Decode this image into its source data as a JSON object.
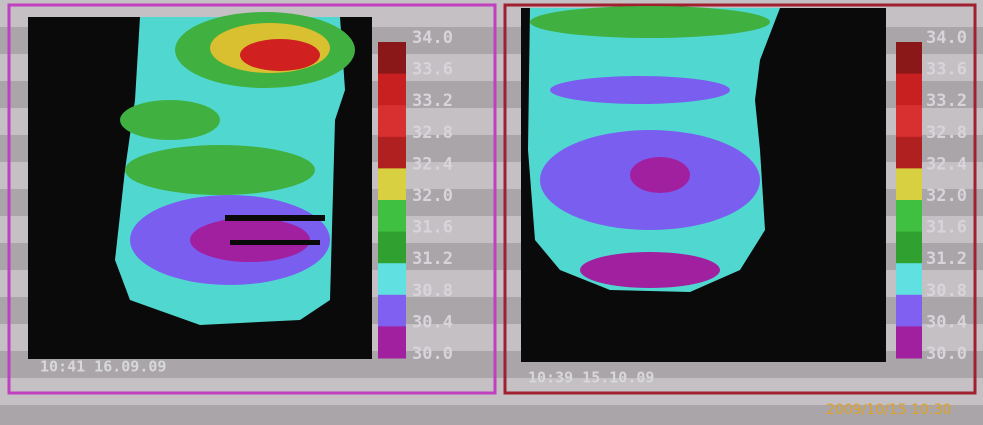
{
  "panels": [
    {
      "scale": [
        "34.0",
        "33.6",
        "33.2",
        "32.8",
        "32.4",
        "32.0",
        "31.6",
        "31.2",
        "30.8",
        "30.4",
        "30.0"
      ],
      "timestamp": "10:41 16.09.09"
    },
    {
      "scale": [
        "34.0",
        "33.6",
        "33.2",
        "32.8",
        "32.4",
        "32.0",
        "31.6",
        "31.2",
        "30.8",
        "30.4",
        "30.0"
      ],
      "timestamp": "10:39 15.10.09"
    }
  ],
  "camera_stamp": "2009/10/15 10:30"
}
